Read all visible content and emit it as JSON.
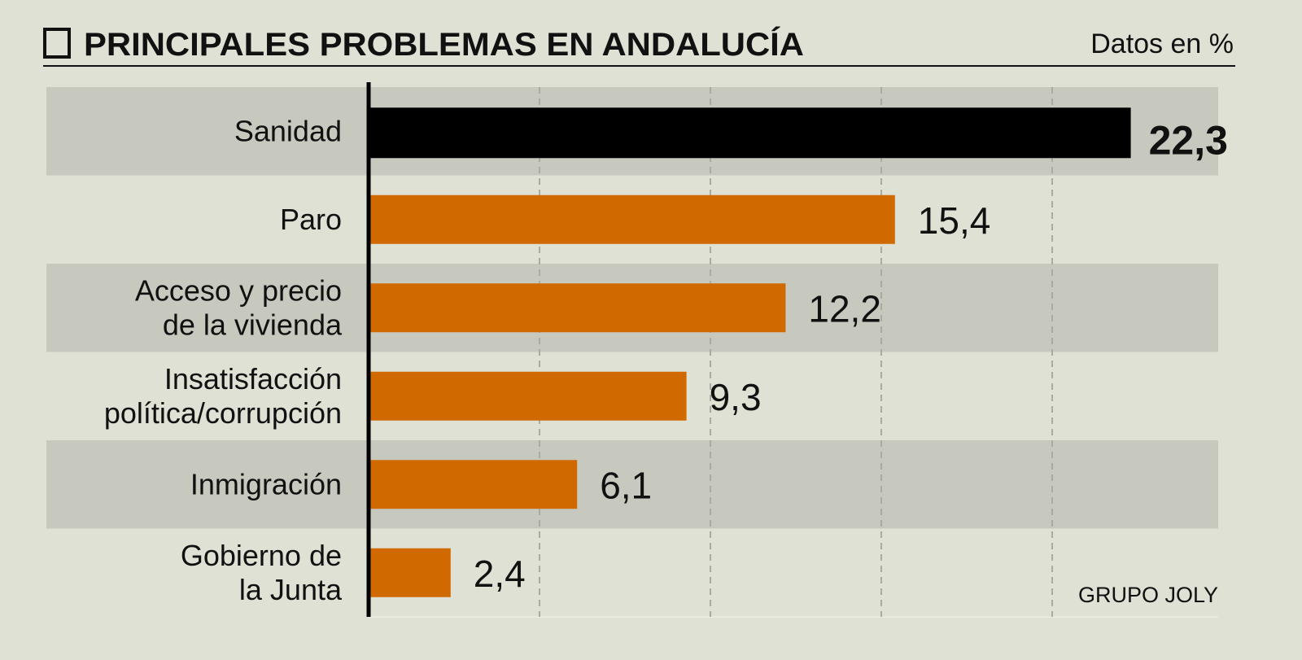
{
  "chart_data": {
    "type": "bar",
    "orientation": "horizontal",
    "title": "PRINCIPALES PROBLEMAS EN ANDALUCÍA",
    "unit_note": "Datos en %",
    "categories": [
      [
        "Sanidad"
      ],
      [
        "Paro"
      ],
      [
        "Acceso y precio",
        "de la vivienda"
      ],
      [
        "Insatisfacción",
        "política/corrupción"
      ],
      [
        "Inmigración"
      ],
      [
        "Gobierno de",
        "la Junta"
      ]
    ],
    "values": [
      22.3,
      15.4,
      12.2,
      9.3,
      6.1,
      2.4
    ],
    "value_labels": [
      "22,3",
      "15,4",
      "12,2",
      "9,3",
      "6,1",
      "2,4"
    ],
    "highlight_index": 0,
    "xlim": [
      0,
      25
    ],
    "gridlines": [
      5,
      10,
      15,
      20
    ],
    "grid": true,
    "source": "GRUPO JOLY",
    "colors": {
      "background": "#dfe1d5",
      "band": "#c7c9bf",
      "highlight": "#000000",
      "bar": "#d06a00",
      "grid": "#a9aba3"
    }
  }
}
